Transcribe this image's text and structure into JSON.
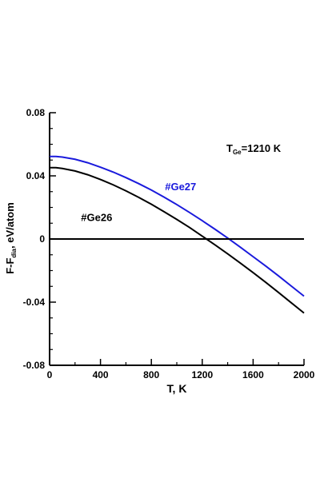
{
  "chart_data": {
    "type": "line",
    "xlabel": "T, K",
    "ylabel_main": "F-F",
    "ylabel_sub": "dia",
    "ylabel_rest": ", eV/atom",
    "xlim": [
      0,
      2000
    ],
    "ylim": [
      -0.08,
      0.08
    ],
    "x_ticks": [
      0,
      400,
      800,
      1200,
      1600,
      2000
    ],
    "x_tick_labels": [
      "0",
      "400",
      "800",
      "1200",
      "1600",
      "2000"
    ],
    "y_ticks": [
      -0.08,
      -0.04,
      0,
      0.04,
      0.08
    ],
    "y_tick_labels": [
      "-0.08",
      "-0.04",
      "0",
      "0.04",
      "0.08"
    ],
    "grid": false,
    "annotation": {
      "main": "T",
      "sub": "Ge",
      "rest": "=1210 K"
    },
    "series": [
      {
        "name": "#Ge27",
        "color": "#1a1adc",
        "x": [
          0,
          50,
          100,
          200,
          300,
          400,
          500,
          600,
          700,
          800,
          900,
          1000,
          1100,
          1200,
          1300,
          1400,
          1500,
          1600,
          1700,
          1800,
          1900,
          2000
        ],
        "y": [
          0.0523,
          0.0523,
          0.0519,
          0.0505,
          0.0483,
          0.0455,
          0.0424,
          0.0389,
          0.0351,
          0.031,
          0.0265,
          0.0218,
          0.0168,
          0.0116,
          0.0062,
          0.0006,
          -0.0052,
          -0.0112,
          -0.0172,
          -0.0234,
          -0.0298,
          -0.0362
        ]
      },
      {
        "name": "#Ge26",
        "color": "#000000",
        "x": [
          0,
          50,
          100,
          200,
          300,
          400,
          500,
          600,
          700,
          800,
          900,
          1000,
          1100,
          1200,
          1300,
          1400,
          1500,
          1600,
          1700,
          1800,
          1900,
          2000
        ],
        "y": [
          0.0452,
          0.0452,
          0.0447,
          0.0431,
          0.0407,
          0.0377,
          0.0343,
          0.0305,
          0.0264,
          0.022,
          0.0173,
          0.0124,
          0.0073,
          0.0018,
          -0.0037,
          -0.0094,
          -0.0153,
          -0.0213,
          -0.0275,
          -0.0339,
          -0.0404,
          -0.0469
        ]
      },
      {
        "name": "",
        "color": "#000000",
        "x": [
          0,
          2000
        ],
        "y": [
          0,
          0
        ]
      }
    ],
    "series_labels": [
      {
        "text": "#Ge27",
        "color": "#1a1adc",
        "x": 1030,
        "y": 0.031
      },
      {
        "text": "#Ge26",
        "color": "#000000",
        "x": 370,
        "y": 0.0115
      }
    ]
  }
}
